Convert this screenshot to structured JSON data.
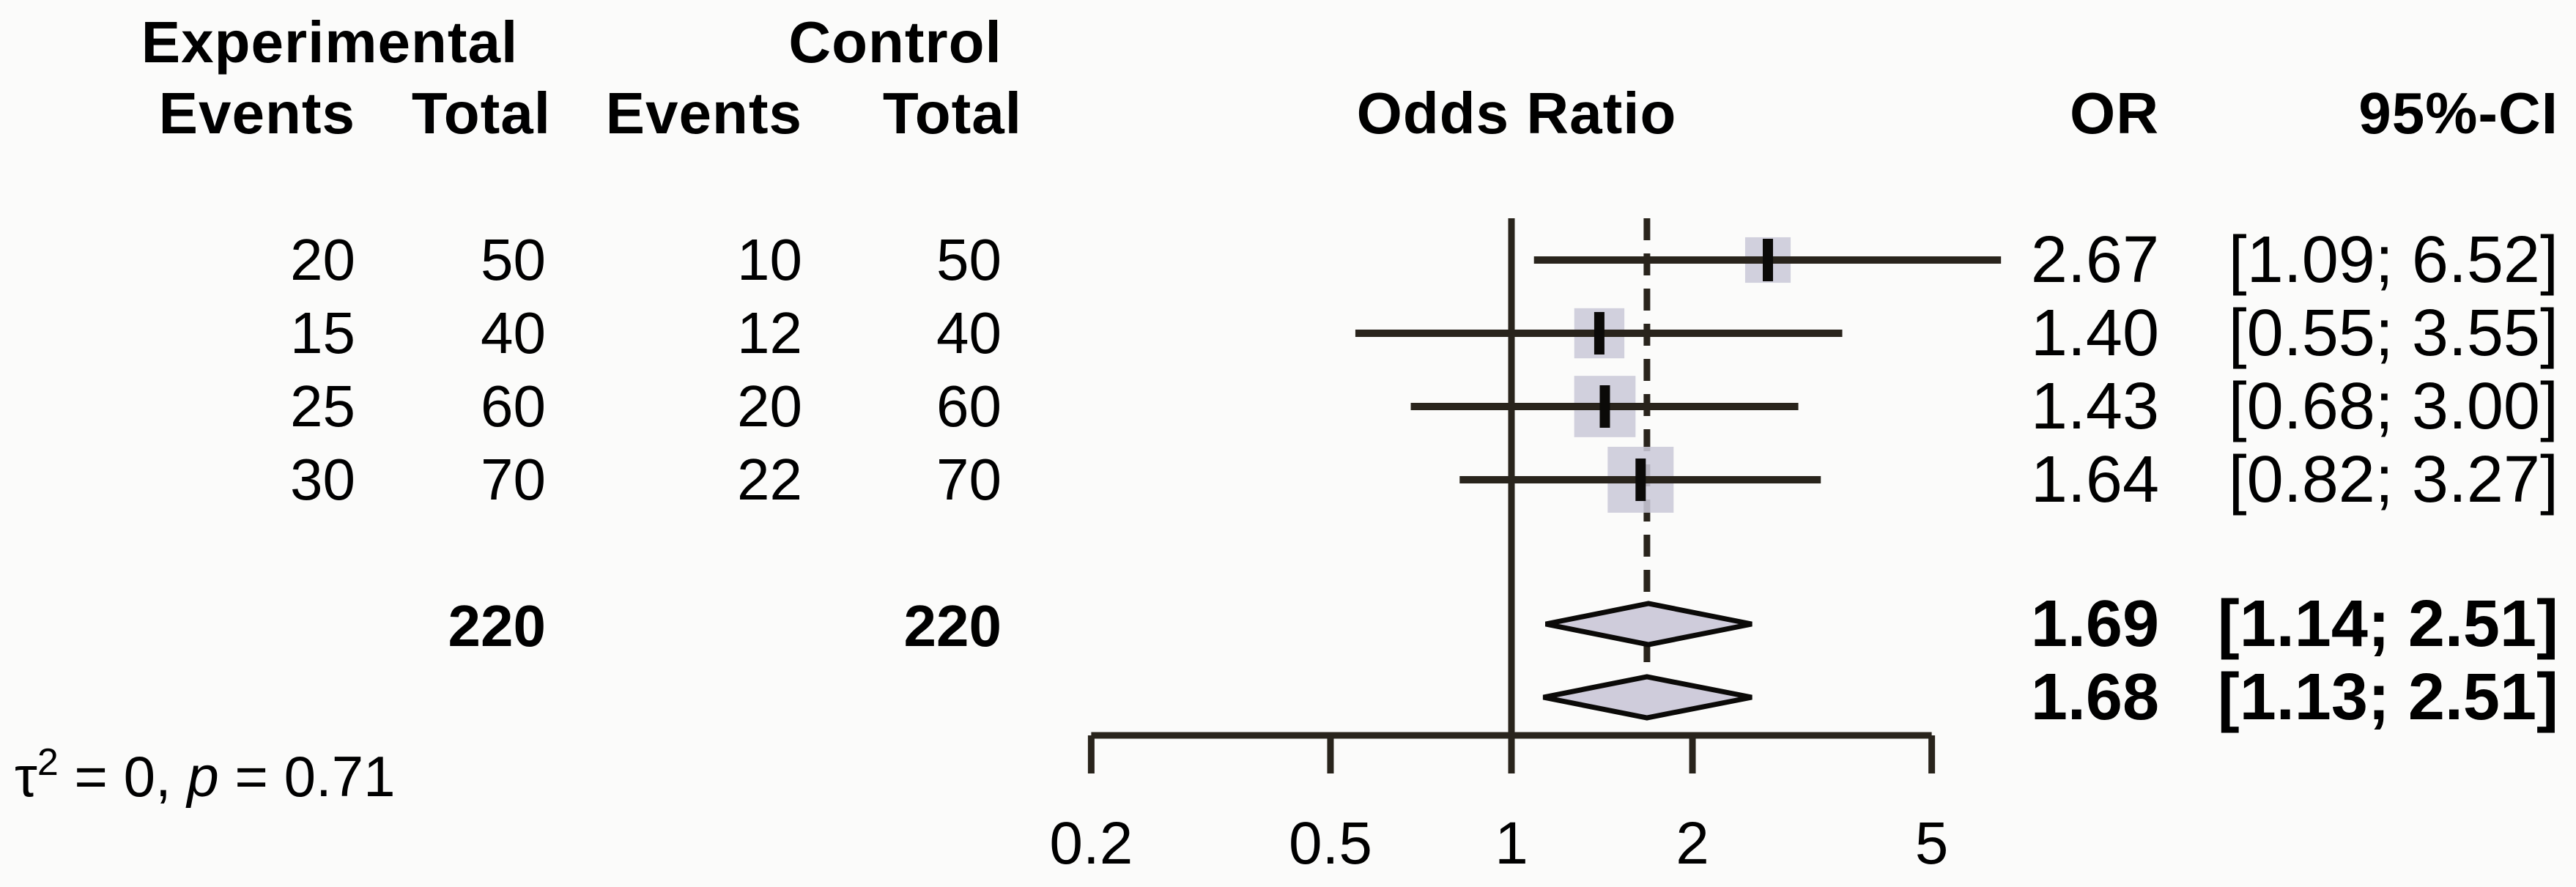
{
  "header": {
    "experimental": "Experimental",
    "control": "Control",
    "exp_events": "Events",
    "exp_total": "Total",
    "ctrl_events": "Events",
    "ctrl_total": "Total",
    "odds_ratio": "Odds Ratio",
    "or": "OR",
    "ci": "95%-CI"
  },
  "rows": [
    {
      "exp_events": "20",
      "exp_total": "50",
      "ctrl_events": "10",
      "ctrl_total": "50",
      "or": "2.67",
      "ci": "[1.09; 6.52]"
    },
    {
      "exp_events": "15",
      "exp_total": "40",
      "ctrl_events": "12",
      "ctrl_total": "40",
      "or": "1.40",
      "ci": "[0.55; 3.55]"
    },
    {
      "exp_events": "25",
      "exp_total": "60",
      "ctrl_events": "20",
      "ctrl_total": "60",
      "or": "1.43",
      "ci": "[0.68; 3.00]"
    },
    {
      "exp_events": "30",
      "exp_total": "70",
      "ctrl_events": "22",
      "ctrl_total": "70",
      "or": "1.64",
      "ci": "[0.82; 3.27]"
    }
  ],
  "totals": {
    "exp_total": "220",
    "ctrl_total": "220"
  },
  "pooled": [
    {
      "or": "1.69",
      "ci": "[1.14; 2.51]"
    },
    {
      "or": "1.68",
      "ci": "[1.13; 2.51]"
    }
  ],
  "heterogeneity": {
    "tau": "τ",
    "sup": "2",
    "mid": " = 0, ",
    "p": "p",
    "tail": " = 0.71"
  },
  "axis_labels": [
    "0.2",
    "0.5",
    "1",
    "2",
    "5"
  ],
  "colors": {
    "line": "#29241c",
    "square_fill": "#cbc9d8",
    "diamond_fill": "#cfccdb",
    "marker": "#0b0a08",
    "text": "#000000",
    "background": "#fbfbfa"
  },
  "chart_data": {
    "type": "forest",
    "x_scale": "log",
    "x_ticks": [
      0.2,
      0.5,
      1,
      2,
      5
    ],
    "xlim": [
      0.2,
      5
    ],
    "reference_or": 1,
    "dashed_line_or": 1.68,
    "title": "",
    "columns": [
      "Experimental Events",
      "Experimental Total",
      "Control Events",
      "Control Total",
      "Odds Ratio",
      "OR",
      "95%-CI"
    ],
    "studies": [
      {
        "exp_events": 20,
        "exp_total": 50,
        "ctrl_events": 10,
        "ctrl_total": 50,
        "or": 2.67,
        "ci_low": 1.09,
        "ci_high": 6.52,
        "weight_rel": 0.69
      },
      {
        "exp_events": 15,
        "exp_total": 40,
        "ctrl_events": 12,
        "ctrl_total": 40,
        "or": 1.4,
        "ci_low": 0.55,
        "ci_high": 3.55,
        "weight_rel": 0.76
      },
      {
        "exp_events": 25,
        "exp_total": 60,
        "ctrl_events": 20,
        "ctrl_total": 60,
        "or": 1.43,
        "ci_low": 0.68,
        "ci_high": 3.0,
        "weight_rel": 0.93
      },
      {
        "exp_events": 30,
        "exp_total": 70,
        "ctrl_events": 22,
        "ctrl_total": 70,
        "or": 1.64,
        "ci_low": 0.82,
        "ci_high": 3.27,
        "weight_rel": 1.0
      }
    ],
    "totals": {
      "experimental_total": 220,
      "control_total": 220
    },
    "pooled": [
      {
        "model": "fixed",
        "or": 1.69,
        "ci_low": 1.14,
        "ci_high": 2.51
      },
      {
        "model": "random",
        "or": 1.68,
        "ci_low": 1.13,
        "ci_high": 2.51
      }
    ],
    "heterogeneity": {
      "tau2": 0,
      "p": 0.71
    }
  }
}
